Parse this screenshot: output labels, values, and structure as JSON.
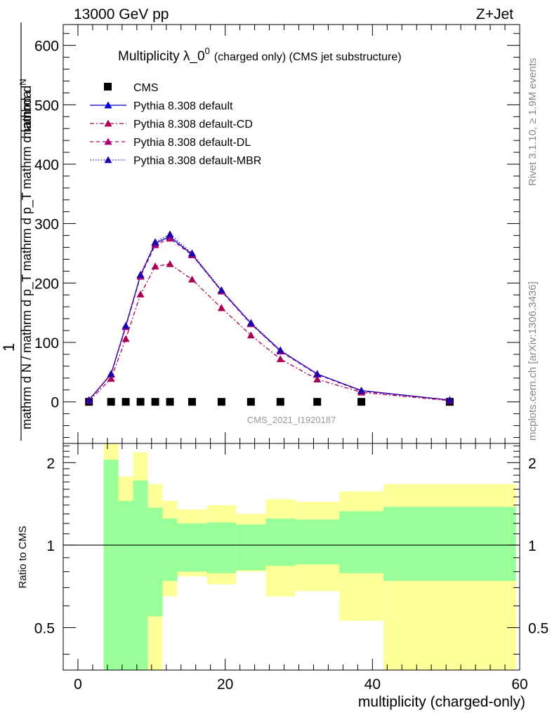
{
  "header": {
    "left": "13000 GeV pp",
    "right": "Z+Jet"
  },
  "side_labels": {
    "rivet": "Rivet 3.1.10, ≥ 1.9M events",
    "mcplots": "mcplots.cern.ch [arXiv:1306.3436]"
  },
  "chart_data": [
    {
      "type": "line",
      "title_main": "Multiplicity λ_0",
      "title_sup": "0",
      "title_rest": "(charged only) (CMS jet substructure)",
      "ylabel_top": "1",
      "ylabel_numerator": "mathrm d",
      "ylabel_numerator_N": "N",
      "ylabel_denominator": "mathrm d N / mathrm d p_T mathrm d p_T mathrm d lambda",
      "xlabel": "",
      "watermark": "CMS_2021_I1920187",
      "xlim": [
        -2,
        60
      ],
      "ylim": [
        -70,
        635
      ],
      "y_ticks": [
        0,
        100,
        200,
        300,
        400,
        500,
        600
      ],
      "x": [
        1.5,
        4.5,
        6.5,
        8.5,
        10.5,
        12.5,
        15.5,
        19.5,
        23.5,
        27.5,
        32.5,
        38.5,
        50.5
      ],
      "series": [
        {
          "name": "CMS",
          "style": "marker-square",
          "color": "#000000",
          "values": [
            0,
            0,
            0,
            0,
            0,
            0,
            0,
            0,
            0,
            0,
            0,
            0,
            0
          ]
        },
        {
          "name": "Pythia 8.308 default",
          "style": "solid",
          "color": "#0000cc",
          "values": [
            3,
            47,
            128,
            213,
            267,
            278,
            248,
            187,
            132,
            86,
            47,
            19,
            3
          ]
        },
        {
          "name": "Pythia 8.308 default-CD",
          "style": "dashdot",
          "color": "#aa0055",
          "values": [
            2,
            39,
            106,
            181,
            228,
            232,
            206,
            158,
            112,
            72,
            38,
            16,
            2
          ]
        },
        {
          "name": "Pythia 8.308 default-DL",
          "style": "dashed",
          "color": "#aa0077",
          "values": [
            3,
            46,
            126,
            211,
            264,
            275,
            247,
            186,
            131,
            85,
            46,
            18,
            3
          ]
        },
        {
          "name": "Pythia 8.308 default-MBR",
          "style": "dotted",
          "color": "#2200aa",
          "values": [
            3,
            47,
            128,
            214,
            269,
            282,
            250,
            188,
            133,
            87,
            47,
            19,
            3
          ]
        }
      ]
    },
    {
      "type": "area",
      "ylabel": "Ratio to CMS",
      "xlabel": "multiplicity (charged-only)",
      "xlim": [
        -2,
        60
      ],
      "ylim": [
        0.35,
        2.35
      ],
      "y_ticks": [
        0.5,
        1,
        2
      ],
      "y_tick_labels": [
        "0.5",
        "1",
        "2"
      ],
      "x_ticks": [
        0,
        20,
        40,
        60
      ],
      "x_tick_labels": [
        "0",
        "20",
        "40",
        "60"
      ],
      "reference_line": 1,
      "green_color": "#99ff99",
      "yellow_color": "#ffff99",
      "bins": [
        {
          "lo": 3.5,
          "hi": 5.5,
          "green": [
            0.2,
            2.05
          ],
          "yellow": [
            0.2,
            2.4
          ]
        },
        {
          "lo": 5.5,
          "hi": 7.5,
          "green": [
            0.2,
            1.45
          ],
          "yellow": [
            0.2,
            1.78
          ]
        },
        {
          "lo": 7.5,
          "hi": 9.5,
          "green": [
            0.2,
            1.72
          ],
          "yellow": [
            0.2,
            2.18
          ]
        },
        {
          "lo": 9.5,
          "hi": 11.5,
          "green": [
            0.55,
            1.37
          ],
          "yellow": [
            0.2,
            1.67
          ]
        },
        {
          "lo": 11.5,
          "hi": 13.5,
          "green": [
            0.74,
            1.25
          ],
          "yellow": [
            0.65,
            1.45
          ]
        },
        {
          "lo": 13.5,
          "hi": 17.5,
          "green": [
            0.8,
            1.2
          ],
          "yellow": [
            0.77,
            1.35
          ]
        },
        {
          "lo": 17.5,
          "hi": 21.5,
          "green": [
            0.79,
            1.21
          ],
          "yellow": [
            0.72,
            1.4
          ]
        },
        {
          "lo": 21.5,
          "hi": 25.5,
          "green": [
            0.81,
            1.19
          ],
          "yellow": [
            0.8,
            1.3
          ]
        },
        {
          "lo": 25.5,
          "hi": 29.5,
          "green": [
            0.84,
            1.25
          ],
          "yellow": [
            0.65,
            1.47
          ]
        },
        {
          "lo": 29.5,
          "hi": 35.5,
          "green": [
            0.85,
            1.24
          ],
          "yellow": [
            0.68,
            1.44
          ]
        },
        {
          "lo": 35.5,
          "hi": 41.5,
          "green": [
            0.79,
            1.33
          ],
          "yellow": [
            0.53,
            1.57
          ]
        },
        {
          "lo": 41.5,
          "hi": 59.5,
          "green": [
            0.74,
            1.38
          ],
          "yellow": [
            0.2,
            1.67
          ]
        }
      ]
    }
  ]
}
